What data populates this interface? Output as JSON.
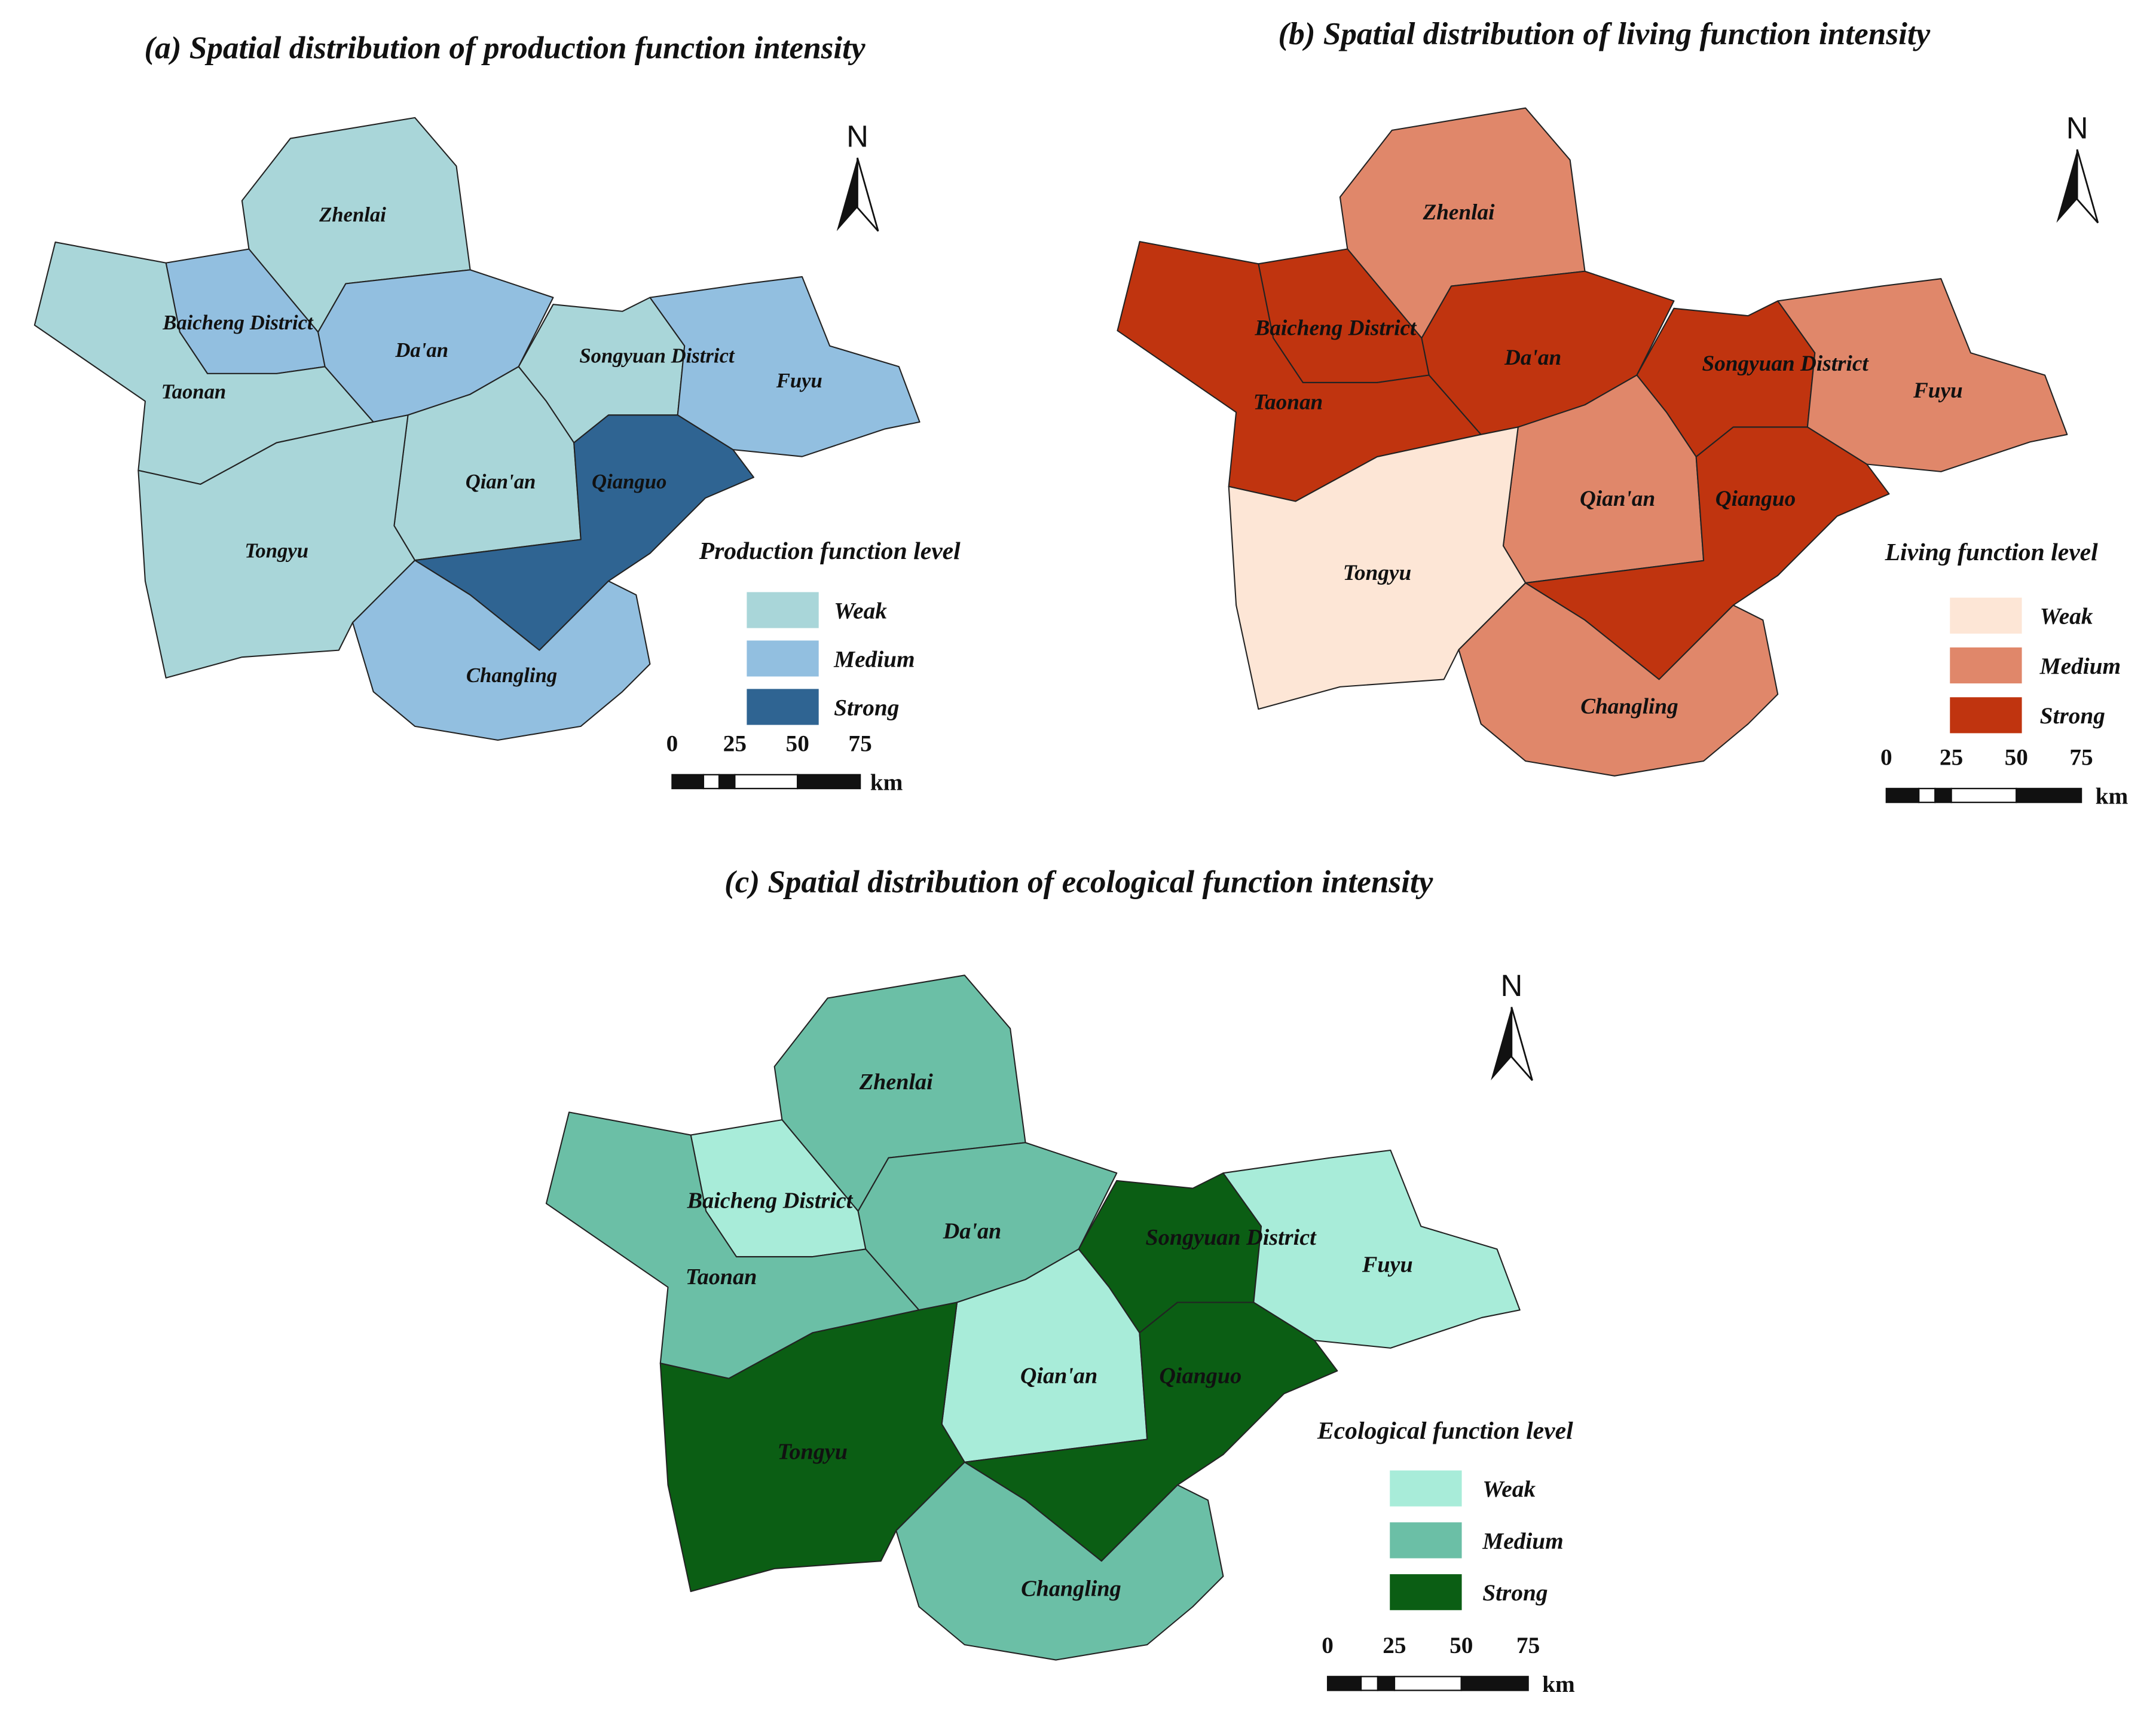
{
  "panels": [
    {
      "title": "(a) Spatial distribution of production function intensity",
      "districts": [
        "Zhenlai",
        "Baicheng District",
        "Taonan",
        "Da'an",
        "Songyuan District",
        "Fuyu",
        "Qian'an",
        "Qianguo",
        "Tongyu",
        "Changling"
      ],
      "north": "N",
      "legend": {
        "title": "Production function level",
        "items": [
          {
            "label": "Weak",
            "color": "#a9d6d9"
          },
          {
            "label": "Medium",
            "color": "#92bfe0"
          },
          {
            "label": "Strong",
            "color": "#2f6492"
          }
        ]
      },
      "scale_bar": {
        "ticks": [
          0,
          25,
          50,
          75
        ],
        "unit": "km"
      }
    },
    {
      "title": "(b) Spatial distribution of living function intensity",
      "districts": [
        "Zhenlai",
        "Baicheng District",
        "Taonan",
        "Da'an",
        "Songyuan District",
        "Fuyu",
        "Qian'an",
        "Qianguo",
        "Tongyu",
        "Changling"
      ],
      "north": "N",
      "legend": {
        "title": "Living function level",
        "items": [
          {
            "label": "Weak",
            "color": "#fde6d6"
          },
          {
            "label": "Medium",
            "color": "#e0876a"
          },
          {
            "label": "Strong",
            "color": "#c0340f"
          }
        ]
      },
      "scale_bar": {
        "ticks": [
          0,
          25,
          50,
          75
        ],
        "unit": "km"
      }
    },
    {
      "title": "(c) Spatial distribution of ecological function intensity",
      "districts": [
        "Zhenlai",
        "Baicheng District",
        "Taonan",
        "Da'an",
        "Songyuan District",
        "Fuyu",
        "Qian'an",
        "Qianguo",
        "Tongyu",
        "Changling"
      ],
      "north": "N",
      "legend": {
        "title": "Ecological function level",
        "items": [
          {
            "label": "Weak",
            "color": "#a8ecd9"
          },
          {
            "label": "Medium",
            "color": "#6bbfa6"
          },
          {
            "label": "Strong",
            "color": "#0b5e14"
          }
        ]
      },
      "scale_bar": {
        "ticks": [
          0,
          25,
          50,
          75
        ],
        "unit": "km"
      }
    }
  ]
}
